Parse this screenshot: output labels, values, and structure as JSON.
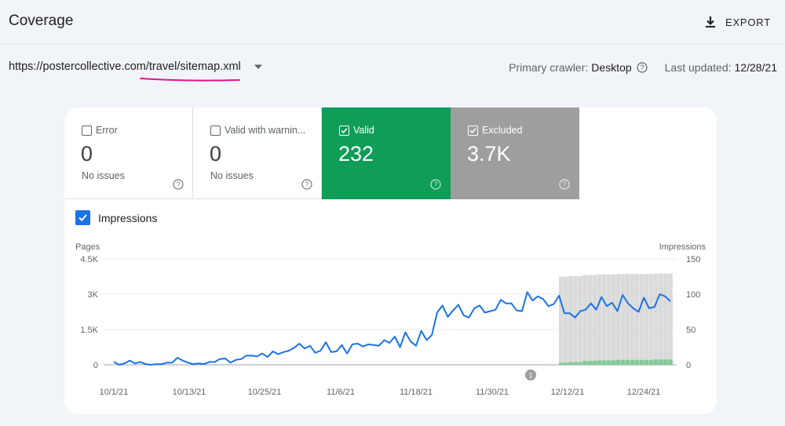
{
  "header": {
    "title": "Coverage",
    "export_label": "EXPORT"
  },
  "sitemap": {
    "url": "https://postercollective.com/travel/sitemap.xml"
  },
  "meta": {
    "crawler_label": "Primary crawler:",
    "crawler_value": "Desktop",
    "updated_label": "Last updated:",
    "updated_value": "12/28/21"
  },
  "tiles": [
    {
      "label": "Error",
      "value": "0",
      "sub": "No issues",
      "checked": false
    },
    {
      "label": "Valid with warnin...",
      "value": "0",
      "sub": "No issues",
      "checked": false
    },
    {
      "label": "Valid",
      "value": "232",
      "sub": "",
      "checked": true
    },
    {
      "label": "Excluded",
      "value": "3.7K",
      "sub": "",
      "checked": true
    }
  ],
  "impressions_toggle": {
    "label": "Impressions",
    "checked": true
  },
  "colors": {
    "valid": "#0f9d58",
    "excluded": "#9e9e9e",
    "impressions": "#1a73e8",
    "accent_underline": "#e0138c"
  },
  "chart_data": {
    "type": "line",
    "left_axis": {
      "label": "Pages",
      "ticks": [
        "0",
        "1.5K",
        "3K",
        "4.5K"
      ],
      "range": [
        0,
        4500
      ]
    },
    "right_axis": {
      "label": "Impressions",
      "ticks": [
        "0",
        "50",
        "100",
        "150"
      ],
      "range": [
        0,
        150
      ]
    },
    "x_ticks": [
      "10/1/21",
      "10/13/21",
      "10/25/21",
      "11/6/21",
      "11/18/21",
      "11/30/21",
      "12/12/21",
      "12/24/21"
    ],
    "annotation": "1",
    "series": [
      {
        "name": "Impressions",
        "axis": "right",
        "values": [
          4,
          0,
          2,
          6,
          2,
          4,
          1,
          0,
          1,
          1,
          3,
          3,
          10,
          6,
          3,
          1,
          2,
          1,
          4,
          4,
          8,
          9,
          3,
          7,
          8,
          13,
          13,
          12,
          16,
          11,
          19,
          15,
          18,
          20,
          24,
          30,
          23,
          27,
          17,
          20,
          32,
          18,
          19,
          28,
          16,
          29,
          30,
          26,
          29,
          28,
          27,
          35,
          31,
          40,
          25,
          46,
          33,
          27,
          48,
          35,
          42,
          74,
          84,
          68,
          77,
          85,
          70,
          67,
          80,
          84,
          74,
          76,
          78,
          92,
          87,
          87,
          77,
          76,
          103,
          91,
          97,
          93,
          83,
          86,
          98,
          73,
          73,
          67,
          76,
          78,
          87,
          78,
          96,
          83,
          88,
          76,
          99,
          87,
          80,
          75,
          95,
          80,
          82,
          100,
          97,
          90
        ]
      },
      {
        "name": "Valid",
        "axis": "left",
        "values": [
          90,
          90,
          120,
          120,
          120,
          170,
          170,
          170,
          190,
          190,
          190,
          190,
          210,
          210,
          210,
          210,
          210,
          210,
          210,
          210,
          230,
          230,
          230,
          230
        ]
      },
      {
        "name": "Excluded",
        "axis": "left",
        "values": [
          3650,
          3650,
          3650,
          3650,
          3650,
          3650,
          3650,
          3650,
          3650,
          3650,
          3650,
          3650,
          3650,
          3650,
          3650,
          3650,
          3650,
          3650,
          3650,
          3650,
          3650,
          3650,
          3650,
          3650
        ]
      }
    ]
  }
}
